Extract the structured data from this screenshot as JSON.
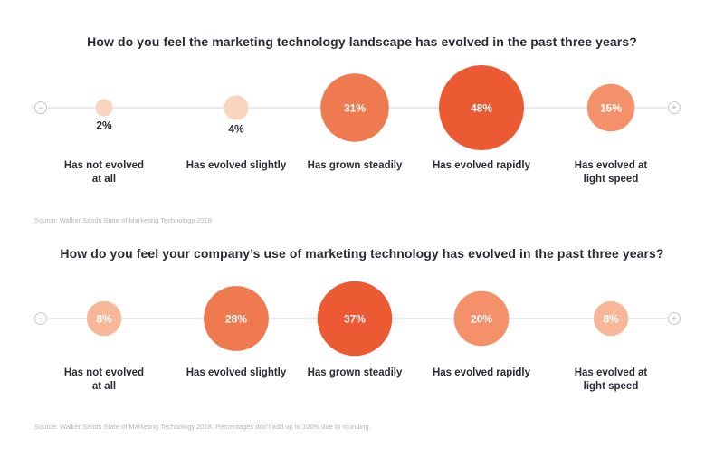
{
  "end_controls": {
    "minus_symbol": "−",
    "plus_symbol": "+"
  },
  "colors": {
    "axis": "#d6d6dc",
    "bubble_scale": [
      "#fbd4bf",
      "#f7b89a",
      "#f4906a",
      "#f07a4f",
      "#ec5a34"
    ],
    "value_text_dark": "#2b2b3a",
    "value_text_light": "#ffffff",
    "category_text": "#2b2b3a"
  },
  "chart_data": [
    {
      "type": "bubble",
      "title": "How do you feel the marketing technology landscape has evolved in the past three years?",
      "source": "Source: Walker Sands State of Marketing Technology 2018",
      "categories": [
        "Has not evolved\nat all",
        "Has evolved slightly",
        "Has grown steadily",
        "Has evolved rapidly",
        "Has evolved at\nlight speed"
      ],
      "values": [
        2,
        4,
        31,
        48,
        15
      ],
      "value_labels": [
        "2%",
        "4%",
        "31%",
        "48%",
        "15%"
      ],
      "unit": "%"
    },
    {
      "type": "bubble",
      "title": "How do you feel your company’s use of marketing technology has evolved in the past three years?",
      "source": "Source: Walker Sands State of Marketing Technology 2018. Percentages don’t add up to 100% due to rounding.",
      "categories": [
        "Has not evolved\nat all",
        "Has evolved slightly",
        "Has grown steadily",
        "Has evolved rapidly",
        "Has evolved at\nlight speed"
      ],
      "values": [
        8,
        28,
        37,
        20,
        8
      ],
      "value_labels": [
        "8%",
        "28%",
        "37%",
        "20%",
        "8%"
      ],
      "unit": "%"
    }
  ]
}
